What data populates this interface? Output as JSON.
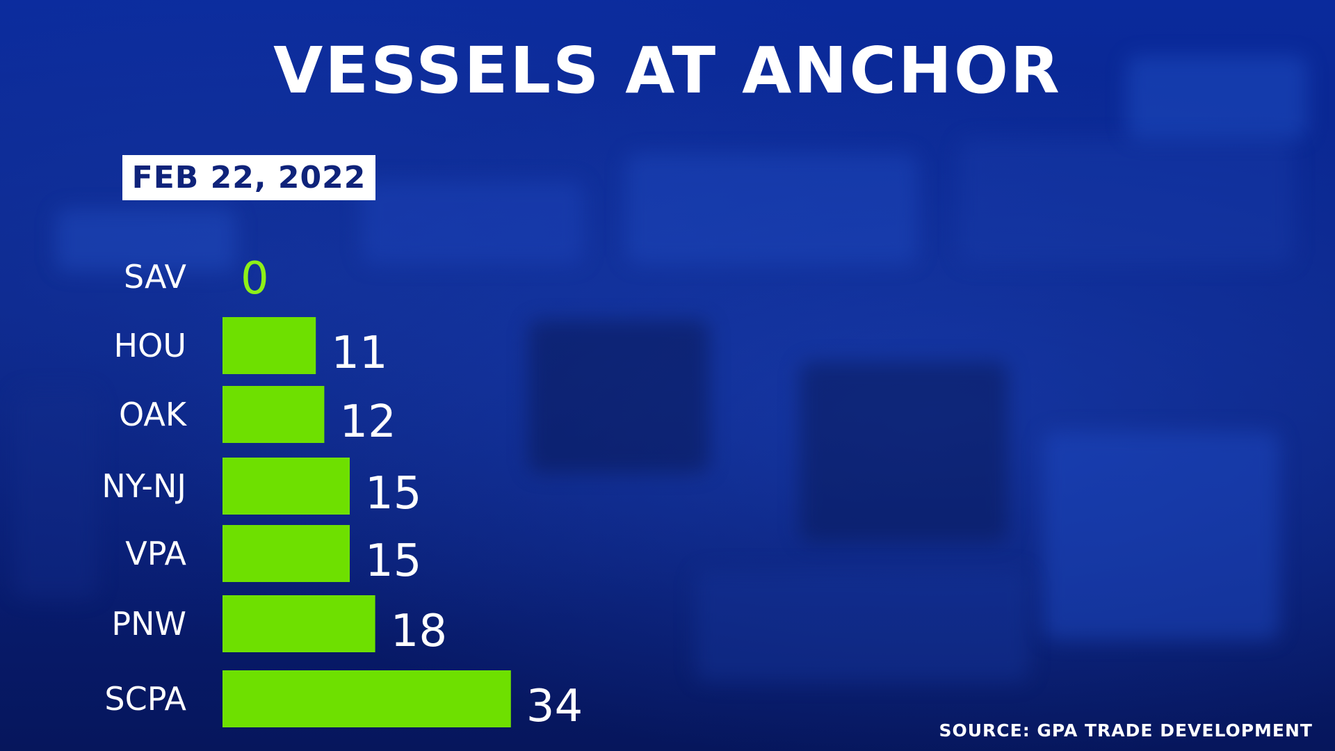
{
  "title": "VESSELS AT ANCHOR",
  "date_label": "FEB 22, 2022",
  "source": "SOURCE: GPA TRADE DEVELOPMENT",
  "colors": {
    "bar": "#6ee000",
    "highlight_label": "#8ef018",
    "text": "#ffffff",
    "date_text": "#0f237a",
    "background": "#0a2486"
  },
  "chart_data": {
    "type": "bar",
    "orientation": "horizontal",
    "categories": [
      "SAV",
      "HOU",
      "OAK",
      "NY-NJ",
      "VPA",
      "PNW",
      "SCPA"
    ],
    "values": [
      0,
      11,
      12,
      15,
      15,
      18,
      34
    ],
    "highlight": "SAV",
    "title": "VESSELS AT ANCHOR",
    "subtitle": "FEB 22, 2022",
    "xlim": [
      0,
      34
    ],
    "grid": false,
    "legend": "none"
  }
}
